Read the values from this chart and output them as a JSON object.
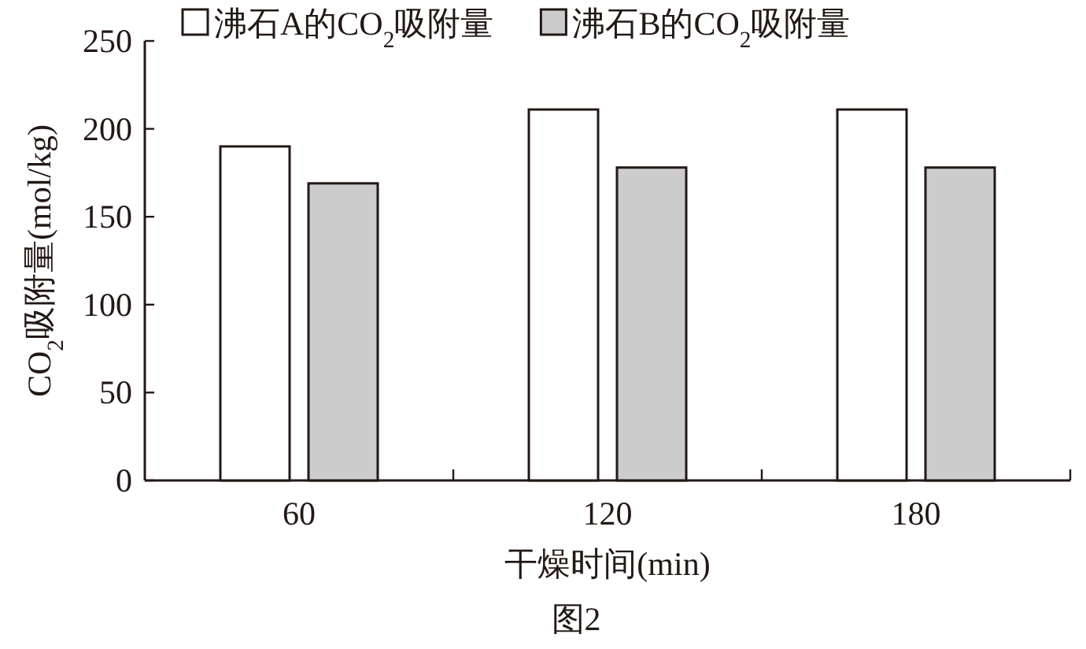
{
  "chart_data": {
    "type": "bar",
    "categories": [
      "60",
      "120",
      "180"
    ],
    "series": [
      {
        "name": "沸石A的CO$_{2}$吸附量",
        "color": "#ffffff",
        "values": [
          190,
          211,
          211
        ]
      },
      {
        "name": "沸石B的CO$_{2}$吸附量",
        "color": "#cccccc",
        "values": [
          169,
          178,
          178
        ]
      }
    ],
    "xlabel": "干燥时间(min)",
    "ylabel": "CO$_{2}$吸附量(mol/kg)",
    "ylim": [
      0,
      250
    ],
    "yticks": [
      0,
      50,
      100,
      150,
      200,
      250
    ],
    "legend": "top",
    "annotations": [
      "图2"
    ]
  }
}
